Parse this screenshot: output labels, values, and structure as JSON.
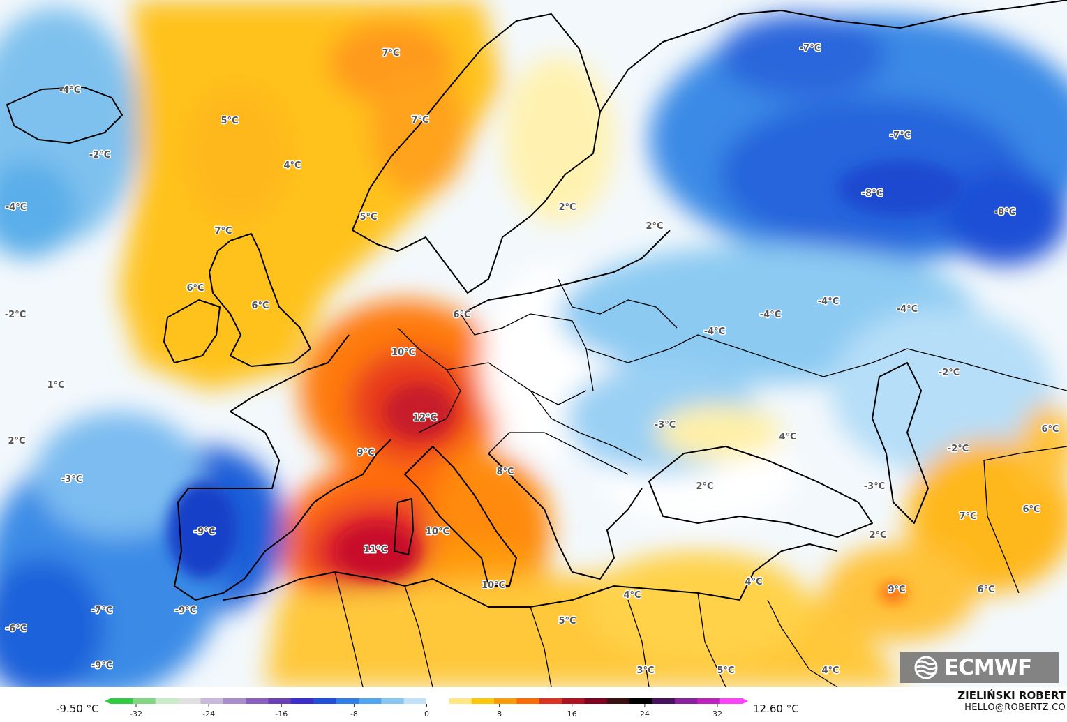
{
  "map": {
    "labels": [
      {
        "text": "7°C"
      },
      {
        "text": "7°C"
      },
      {
        "text": "5°C"
      },
      {
        "text": "4°C"
      },
      {
        "text": "-4°C"
      },
      {
        "text": "-2°C"
      },
      {
        "text": "-4°C"
      },
      {
        "text": "7°C"
      },
      {
        "text": "6°C"
      },
      {
        "text": "6°C"
      },
      {
        "text": "5°C"
      },
      {
        "text": "6°C"
      },
      {
        "text": "-2°C"
      },
      {
        "text": "1°C"
      },
      {
        "text": "2°C"
      },
      {
        "text": "-3°C"
      },
      {
        "text": "10°C"
      },
      {
        "text": "12°C"
      },
      {
        "text": "9°C"
      },
      {
        "text": "8°C"
      },
      {
        "text": "-9°C"
      },
      {
        "text": "11°C"
      },
      {
        "text": "10°C"
      },
      {
        "text": "10°C"
      },
      {
        "text": "-7°C"
      },
      {
        "text": "-9°C"
      },
      {
        "text": "-6°C"
      },
      {
        "text": "-9°C"
      },
      {
        "text": "2°C"
      },
      {
        "text": "2°C"
      },
      {
        "text": "-7°C"
      },
      {
        "text": "-7°C"
      },
      {
        "text": "-8°C"
      },
      {
        "text": "-8°C"
      },
      {
        "text": "-4°C"
      },
      {
        "text": "-4°C"
      },
      {
        "text": "-4°C"
      },
      {
        "text": "-4°C"
      },
      {
        "text": "-2°C"
      },
      {
        "text": "-3°C"
      },
      {
        "text": "4°C"
      },
      {
        "text": "2°C"
      },
      {
        "text": "-2°C"
      },
      {
        "text": "-3°C"
      },
      {
        "text": "2°C"
      },
      {
        "text": "6°C"
      },
      {
        "text": "7°C"
      },
      {
        "text": "6°C"
      },
      {
        "text": "9°C"
      },
      {
        "text": "6°C"
      },
      {
        "text": "4°C"
      },
      {
        "text": "4°C"
      },
      {
        "text": "5°C"
      },
      {
        "text": "3°C"
      },
      {
        "text": "5°C"
      },
      {
        "text": "4°C"
      }
    ]
  },
  "logo": {
    "text": "ECMWF",
    "icon": "ecmwf-logo-icon"
  },
  "legend": {
    "min_label": "-9.50 °C",
    "max_label": "12.60 °C",
    "ticks": [
      "-32",
      "-24",
      "-16",
      "-8",
      "0",
      "8",
      "16",
      "24",
      "32"
    ],
    "colors": [
      "#2ecc40",
      "#7fd87f",
      "#c8ecc8",
      "#e0e0e0",
      "#c9b8dc",
      "#a98ccc",
      "#8a5fc0",
      "#6a3fb8",
      "#3b2ed0",
      "#1d4fe0",
      "#2f7fe8",
      "#4fa6f0",
      "#86c6f5",
      "#c2e2fa",
      "#ffffff",
      "#ffe680",
      "#ffc800",
      "#ff9c00",
      "#ff6a00",
      "#e03020",
      "#b01020",
      "#800020",
      "#3a1010",
      "#000000",
      "#4a1060",
      "#8a20a0",
      "#c020c0",
      "#ff40ff"
    ]
  },
  "author": {
    "name": "ZIELIŃSKI ROBERT",
    "email": "HELLO@ROBERTZ.CO"
  }
}
